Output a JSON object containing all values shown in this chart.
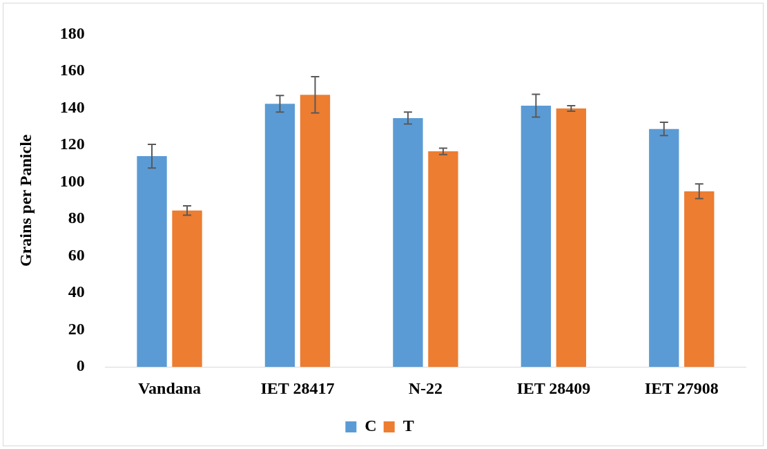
{
  "chart_data": {
    "type": "bar",
    "ylabel": "Grains per Panicle",
    "categories": [
      "Vandana",
      "IET 28417",
      "N-22",
      "IET 28409",
      "IET 27908"
    ],
    "series": [
      {
        "name": "C",
        "color": "#5b9bd5",
        "values": [
          114,
          142.3,
          134.6,
          141.3,
          128.7
        ],
        "errors": [
          6.4,
          4.5,
          3.2,
          6.2,
          3.6
        ]
      },
      {
        "name": "T",
        "color": "#ed7d31",
        "values": [
          84.6,
          147.2,
          116.6,
          139.8,
          95.0
        ],
        "errors": [
          2.5,
          9.8,
          1.7,
          1.5,
          4
        ]
      }
    ],
    "ylim": [
      0,
      180
    ],
    "yticks": [
      0,
      20,
      40,
      60,
      80,
      100,
      120,
      140,
      160,
      180
    ],
    "grid": false,
    "legend": "bottom"
  }
}
